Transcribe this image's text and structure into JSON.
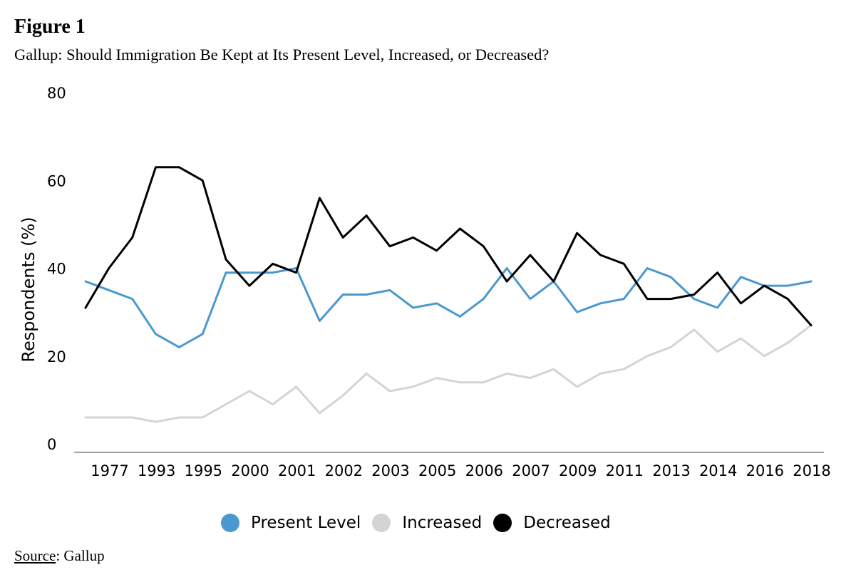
{
  "figure_label": "Figure 1",
  "subtitle": "Gallup: Should Immigration Be Kept at Its Present Level, Increased, or Decreased?",
  "source": {
    "label": "Source",
    "text": ": Gallup"
  },
  "colors": {
    "present": "#4a98cf",
    "increased": "#d4d4d4",
    "decreased": "#000000",
    "axis": "#808080"
  },
  "chart_data": {
    "type": "line",
    "title": "Gallup: Should Immigration Be Kept at Its Present Level, Increased, or Decreased?",
    "xlabel": "",
    "ylabel": "Respondents (%)",
    "ylim": [
      0,
      80
    ],
    "yticks": [
      0,
      20,
      40,
      60,
      80
    ],
    "grid": false,
    "legend_position": "bottom",
    "x_tick_labels": [
      "1977",
      "1993",
      "1995",
      "2000",
      "2001",
      "2002",
      "2003",
      "2005",
      "2006",
      "2007",
      "2009",
      "2011",
      "2013",
      "2014",
      "2016",
      "2018"
    ],
    "n_points": 32,
    "series": [
      {
        "name": "Present Level",
        "color_key": "present",
        "values": [
          37,
          35,
          33,
          25,
          22,
          25,
          39,
          39,
          39,
          40,
          28,
          34,
          34,
          35,
          31,
          32,
          29,
          33,
          40,
          33,
          37,
          30,
          32,
          33,
          40,
          38,
          33,
          31,
          38,
          36,
          36,
          37
        ]
      },
      {
        "name": "Increased",
        "color_key": "increased",
        "values": [
          6,
          6,
          6,
          5,
          6,
          6,
          9,
          12,
          9,
          13,
          7,
          11,
          16,
          12,
          13,
          15,
          14,
          14,
          16,
          15,
          17,
          13,
          16,
          17,
          20,
          22,
          26,
          21,
          24,
          20,
          23,
          27
        ]
      },
      {
        "name": "Decreased",
        "color_key": "decreased",
        "values": [
          31,
          40,
          47,
          63,
          63,
          60,
          42,
          36,
          41,
          39,
          56,
          47,
          52,
          45,
          47,
          44,
          49,
          45,
          37,
          43,
          37,
          48,
          43,
          41,
          33,
          33,
          34,
          39,
          32,
          36,
          33,
          27
        ]
      }
    ]
  }
}
